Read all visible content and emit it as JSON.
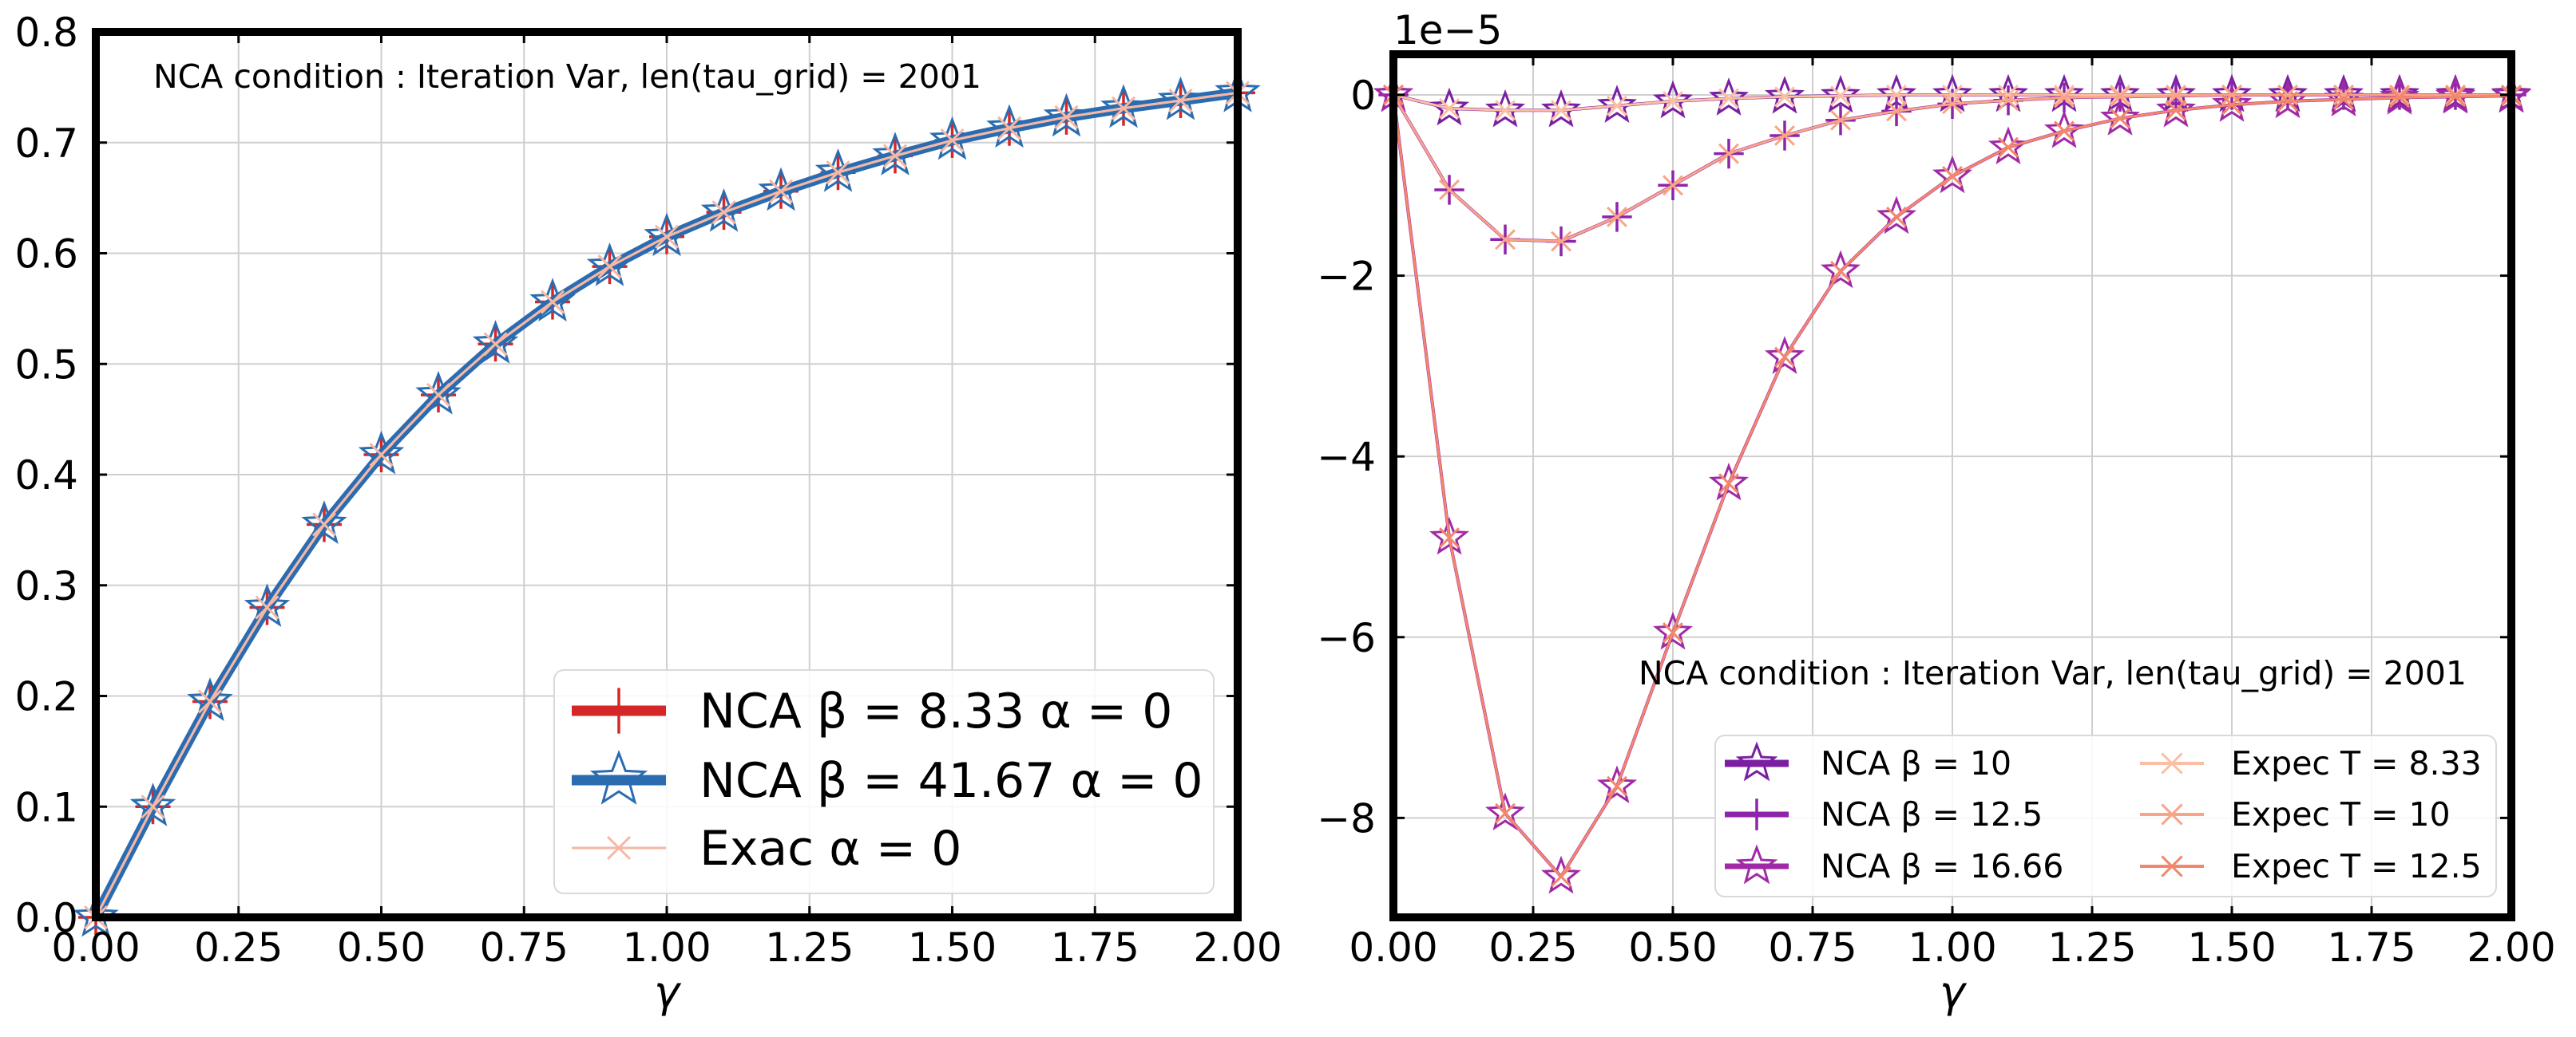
{
  "chart_data": [
    {
      "type": "line",
      "xlabel": "γ",
      "xlim": [
        0,
        2
      ],
      "ylim": [
        0,
        0.8
      ],
      "xticks": [
        "0.00",
        "0.25",
        "0.50",
        "0.75",
        "1.00",
        "1.25",
        "1.50",
        "1.75",
        "2.00"
      ],
      "yticks": [
        "0.0",
        "0.1",
        "0.2",
        "0.3",
        "0.4",
        "0.5",
        "0.6",
        "0.7",
        "0.8"
      ],
      "grid": true,
      "legend_position": "lower-right",
      "annotation": "NCA condition : Iteration Var, len(tau_grid) = 2001",
      "x": [
        0,
        0.1,
        0.2,
        0.3,
        0.4,
        0.5,
        0.6,
        0.7,
        0.8,
        0.9,
        1.0,
        1.1,
        1.2,
        1.3,
        1.4,
        1.5,
        1.6,
        1.7,
        1.8,
        1.9,
        2.0
      ],
      "series": [
        {
          "name": "NCA  β = 8.33  α = 0",
          "color": "#d62728",
          "marker": "plus",
          "values": [
            0,
            0.1,
            0.195,
            0.28,
            0.355,
            0.418,
            0.472,
            0.518,
            0.556,
            0.588,
            0.615,
            0.637,
            0.656,
            0.673,
            0.688,
            0.702,
            0.713,
            0.723,
            0.731,
            0.738,
            0.745
          ]
        },
        {
          "name": "NCA  β = 41.67  α = 0",
          "color": "#2b6cb0",
          "marker": "star",
          "values": [
            0,
            0.1,
            0.195,
            0.28,
            0.355,
            0.418,
            0.472,
            0.518,
            0.556,
            0.588,
            0.615,
            0.637,
            0.656,
            0.673,
            0.688,
            0.702,
            0.713,
            0.723,
            0.731,
            0.738,
            0.745
          ]
        },
        {
          "name": "Exac α = 0",
          "color": "#f7b7a3",
          "marker": "x",
          "values": [
            0,
            0.1,
            0.195,
            0.28,
            0.355,
            0.418,
            0.472,
            0.518,
            0.556,
            0.588,
            0.615,
            0.637,
            0.656,
            0.673,
            0.688,
            0.702,
            0.713,
            0.723,
            0.731,
            0.738,
            0.745
          ]
        }
      ]
    },
    {
      "type": "line",
      "xlabel": "γ",
      "xlim": [
        0,
        2
      ],
      "ylim": [
        -9.1e-05,
        4.5e-06
      ],
      "offset_text": "1e−5",
      "xticks": [
        "0.00",
        "0.25",
        "0.50",
        "0.75",
        "1.00",
        "1.25",
        "1.50",
        "1.75",
        "2.00"
      ],
      "ytick_values": [
        0,
        -2,
        -4,
        -6,
        -8
      ],
      "yticks": [
        "0",
        "−2",
        "−4",
        "−6",
        "−8"
      ],
      "grid": true,
      "legend_position": "lower-right",
      "legend_columns": 2,
      "annotation": "NCA condition : Iteration Var, len(tau_grid) = 2001",
      "x": [
        0,
        0.1,
        0.2,
        0.3,
        0.4,
        0.5,
        0.6,
        0.7,
        0.8,
        0.9,
        1.0,
        1.1,
        1.2,
        1.3,
        1.4,
        1.5,
        1.6,
        1.7,
        1.8,
        1.9,
        2.0
      ],
      "series": [
        {
          "name": "NCA  β = 10",
          "color": "#7a1fa2",
          "marker": "star",
          "values": [
            0,
            -1.5e-06,
            -1.7e-06,
            -1.7e-06,
            -1.2e-06,
            -7e-07,
            -4e-07,
            -2e-07,
            -1e-07,
            0,
            0,
            0,
            0,
            0,
            0,
            0,
            0,
            0,
            0,
            0,
            0
          ]
        },
        {
          "name": "NCA  β = 12.5",
          "color": "#8e24aa",
          "marker": "plus",
          "values": [
            0,
            -1.05e-05,
            -1.6e-05,
            -1.62e-05,
            -1.35e-05,
            -1e-05,
            -6.5e-06,
            -4.5e-06,
            -2.8e-06,
            -1.8e-06,
            -1e-06,
            -6e-07,
            -3e-07,
            -2e-07,
            -1e-07,
            0,
            0,
            0,
            0,
            0,
            0
          ]
        },
        {
          "name": "NCA  β = 16.66",
          "color": "#a02aa6",
          "marker": "star",
          "values": [
            0,
            -4.9e-05,
            -7.95e-05,
            -8.65e-05,
            -7.65e-05,
            -5.95e-05,
            -4.3e-05,
            -2.9e-05,
            -1.95e-05,
            -1.35e-05,
            -9e-06,
            -5.8e-06,
            -4e-06,
            -2.6e-06,
            -1.7e-06,
            -1.1e-06,
            -7e-07,
            -5e-07,
            -3e-07,
            -2e-07,
            -1e-07
          ]
        },
        {
          "name": "Expec T = 8.33",
          "color": "#fbbfa4",
          "marker": "x",
          "values": [
            0,
            -1.5e-06,
            -1.7e-06,
            -1.7e-06,
            -1.2e-06,
            -7e-07,
            -4e-07,
            -2e-07,
            -1e-07,
            0,
            0,
            0,
            0,
            0,
            0,
            0,
            0,
            0,
            0,
            0,
            0
          ]
        },
        {
          "name": "Expec T = 10",
          "color": "#f9a486",
          "marker": "x",
          "values": [
            0,
            -1.05e-05,
            -1.6e-05,
            -1.62e-05,
            -1.35e-05,
            -1e-05,
            -6.5e-06,
            -4.5e-06,
            -2.8e-06,
            -1.8e-06,
            -1e-06,
            -6e-07,
            -3e-07,
            -2e-07,
            -1e-07,
            0,
            0,
            0,
            0,
            0,
            0
          ]
        },
        {
          "name": "Expec T = 12.5",
          "color": "#f2876b",
          "marker": "x",
          "values": [
            0,
            -4.9e-05,
            -7.95e-05,
            -8.65e-05,
            -7.65e-05,
            -5.95e-05,
            -4.3e-05,
            -2.9e-05,
            -1.95e-05,
            -1.35e-05,
            -9e-06,
            -5.8e-06,
            -4e-06,
            -2.6e-06,
            -1.7e-06,
            -1.1e-06,
            -7e-07,
            -5e-07,
            -3e-07,
            -2e-07,
            -1e-07
          ]
        }
      ]
    }
  ]
}
